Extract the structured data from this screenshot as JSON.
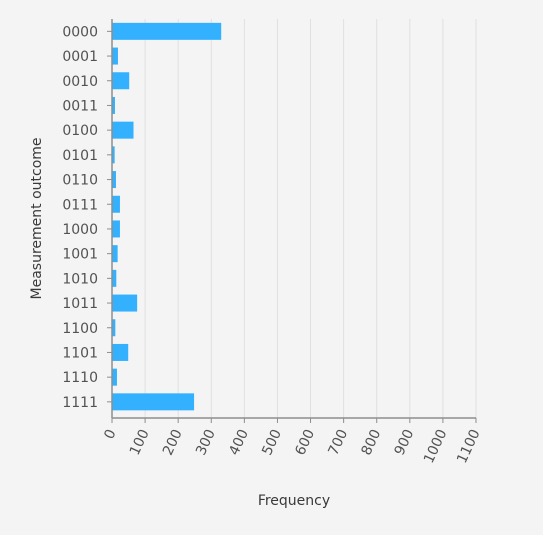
{
  "colors": {
    "background": "#f4f4f4",
    "bar": "#33b1ff",
    "grid": "#e0e0e0",
    "axis": "#8d8d8d",
    "text": "#525252"
  },
  "chart_data": {
    "type": "bar",
    "orientation": "horizontal",
    "title": "",
    "xlabel": "Frequency",
    "ylabel": "Measurement outcome",
    "categories": [
      "0000",
      "0001",
      "0010",
      "0011",
      "0100",
      "0101",
      "0110",
      "0111",
      "1000",
      "1001",
      "1010",
      "1011",
      "1100",
      "1101",
      "1110",
      "1111"
    ],
    "values": [
      330,
      18,
      52,
      9,
      65,
      8,
      12,
      24,
      24,
      17,
      13,
      76,
      10,
      49,
      15,
      248
    ],
    "xlim": [
      0,
      1100
    ],
    "xticks": [
      0,
      100,
      200,
      300,
      400,
      500,
      600,
      700,
      800,
      900,
      1000,
      1100
    ],
    "grid": "vertical"
  }
}
